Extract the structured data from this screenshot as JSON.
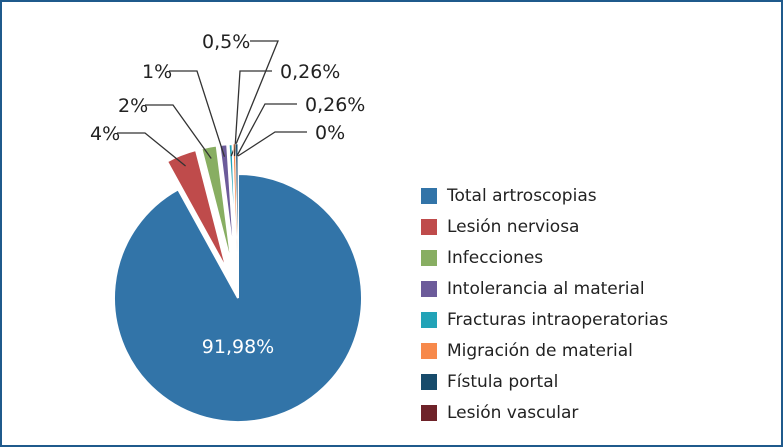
{
  "chart_data": {
    "type": "pie",
    "exploded": true,
    "legend_position": "right",
    "slices": [
      {
        "name": "Total artroscopias",
        "value": 91.98,
        "label": "91,98%",
        "color": "#3274a8"
      },
      {
        "name": "Lesión nerviosa",
        "value": 4,
        "label": "4%",
        "color": "#bf4b4b"
      },
      {
        "name": "Infecciones",
        "value": 2,
        "label": "2%",
        "color": "#88ae62"
      },
      {
        "name": "Intolerancia al material",
        "value": 1,
        "label": "1%",
        "color": "#6c5b9a"
      },
      {
        "name": "Fracturas intraoperatorias",
        "value": 0.5,
        "label": "0,5%",
        "color": "#22a3b7"
      },
      {
        "name": "Migración de material",
        "value": 0.26,
        "label": "0,26%",
        "color": "#f7894b"
      },
      {
        "name": "Fístula portal",
        "value": 0.26,
        "label": "0,26%",
        "color": "#174b6b"
      },
      {
        "name": "Lesión vascular",
        "value": 0,
        "label": "0%",
        "color": "#6e2229"
      }
    ]
  }
}
